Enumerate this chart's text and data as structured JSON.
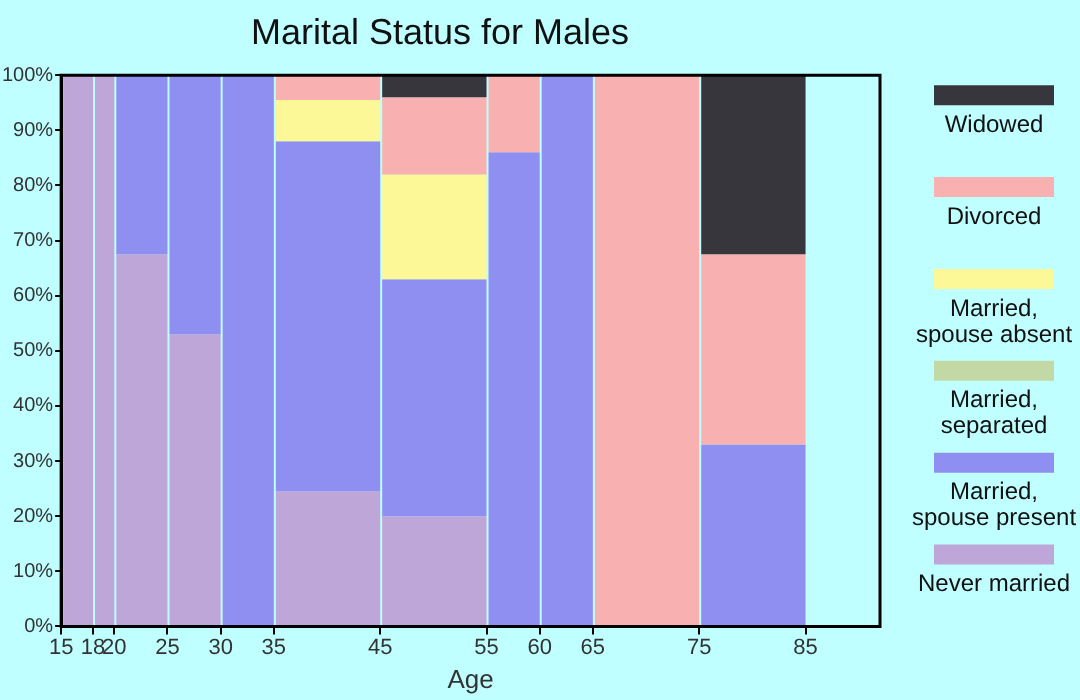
{
  "chart_data": {
    "type": "bar",
    "title": "Marital Status for Males",
    "xlabel": "Age",
    "stacked": true,
    "x": [
      16.5,
      19,
      22.5,
      27.5,
      32.5,
      40,
      50,
      57.5,
      62.5,
      70,
      80
    ],
    "series": [
      {
        "name": "Never married",
        "color": "#bea6d8",
        "values": [
          100,
          100,
          67.5,
          53,
          0,
          24.5,
          20,
          0,
          0,
          0,
          0
        ]
      },
      {
        "name": "Married, spouse present",
        "color": "#8f8ff2",
        "values": [
          0,
          0,
          32.5,
          47,
          100,
          63.5,
          43,
          86,
          100,
          0,
          33
        ]
      },
      {
        "name": "Married, separated",
        "color": "#c2d9a5",
        "values": [
          0,
          0,
          0,
          0,
          0,
          0,
          0,
          0,
          0,
          0,
          0
        ]
      },
      {
        "name": "Married, spouse absent",
        "color": "#fdf897",
        "values": [
          0,
          0,
          0,
          0,
          0,
          7.5,
          19,
          0,
          0,
          0,
          0
        ]
      },
      {
        "name": "Divorced",
        "color": "#f8b1b0",
        "values": [
          0,
          0,
          0,
          0,
          0,
          4.5,
          14,
          14,
          0,
          100,
          34.5
        ]
      },
      {
        "name": "Widowed",
        "color": "#36363c",
        "values": [
          0,
          0,
          0,
          0,
          0,
          0,
          4,
          0,
          0,
          0,
          32.5
        ]
      }
    ],
    "xlim": [
      15,
      92
    ],
    "xticks": [
      15,
      18,
      20,
      25,
      30,
      35,
      45,
      55,
      60,
      65,
      75,
      85
    ],
    "ylim": [
      0,
      100
    ],
    "yticks": [
      {
        "value": 0,
        "label": "0%"
      },
      {
        "value": 10,
        "label": "10%"
      },
      {
        "value": 20,
        "label": "20%"
      },
      {
        "value": 30,
        "label": "30%"
      },
      {
        "value": 40,
        "label": "40%"
      },
      {
        "value": 50,
        "label": "50%"
      },
      {
        "value": 60,
        "label": "60%"
      },
      {
        "value": 70,
        "label": "70%"
      },
      {
        "value": 80,
        "label": "80%"
      },
      {
        "value": 90,
        "label": "90%"
      },
      {
        "value": 100,
        "label": "100%"
      }
    ],
    "grid": false,
    "legend": "right"
  }
}
